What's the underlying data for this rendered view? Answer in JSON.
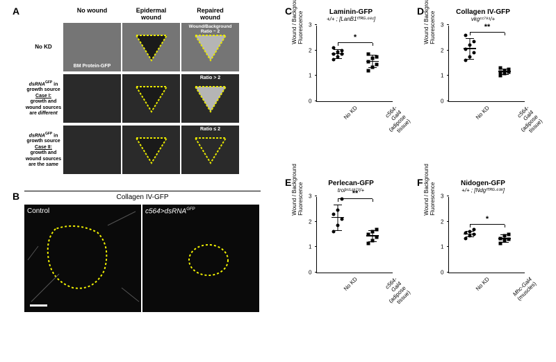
{
  "panels": {
    "A": {
      "label": "A"
    },
    "B": {
      "label": "B",
      "header": "Collagen IV-GFP",
      "left_label": "Control",
      "right_label": "c564>dsRNA",
      "right_sup": "GFP"
    },
    "C": {
      "label": "C",
      "title": "Laminin-GFP",
      "subtitle": "+/+ ; [LanB1ᶠᵀᴿᴳ·⁶⁸¹]",
      "sig": "*"
    },
    "D": {
      "label": "D",
      "title": "Collagen IV-GFP",
      "subtitle": "vkgᶜᶜ⁷⁹¹/+",
      "sig": "**"
    },
    "E": {
      "label": "E",
      "title": "Perlecan-GFP",
      "subtitle": "trolᶻᶜᴸ¹⁹⁷³/+",
      "sig": "**"
    },
    "F": {
      "label": "F",
      "title": "Nidogen-GFP",
      "subtitle": "+/+ ; [Ndgᶠᵀᴿᴳ·⁶³⁸]",
      "sig": "*"
    }
  },
  "gridA": {
    "cols": [
      "No wound",
      "Epidermal\nwound",
      "Repaired\nwound"
    ],
    "rows": [
      {
        "label": "No KD",
        "ratio": "Wound/Background\nRatio ~ 2",
        "bm_text": "BM Protein-GFP"
      },
      {
        "label_html": "dsRNAᴳᶠᴾ in\ngrowth source\nCase I:\ngrowth and\nwound sources\nare different",
        "ratio": "Ratio > 2"
      },
      {
        "label_html": "dsRNAᴳᶠᴾ in\ngrowth source\nCase II:\ngrowth and\nwound sources\nare the same",
        "ratio": "Ratio ≤ 2"
      }
    ],
    "colors": {
      "row0_bg": "#757575",
      "row12_bg": "#2a2a2a",
      "tri_fill_light": "#b5b5b5",
      "tri_fill_dark": "#1a1a1a",
      "tri_border": "#e8e800"
    }
  },
  "charts": {
    "y_label": "Wound / Background\nFluorescence",
    "y_ticks": [
      0,
      1,
      2,
      3
    ],
    "x_labels_adipose": [
      "No KD",
      "c564-Gal4\n(adipose tissue)"
    ],
    "x_labels_muscle": [
      "No KD",
      "Mhc-Gal4\n(muscles)"
    ],
    "C": {
      "g1": {
        "mean": 1.85,
        "sd": 0.18,
        "pts": [
          1.65,
          1.75,
          1.85,
          1.85,
          1.95,
          2.0,
          2.1
        ]
      },
      "g2": {
        "mean": 1.55,
        "sd": 0.25,
        "pts": [
          1.2,
          1.35,
          1.45,
          1.55,
          1.7,
          1.75,
          1.85
        ]
      }
    },
    "D": {
      "g1": {
        "mean": 2.05,
        "sd": 0.4,
        "pts": [
          1.6,
          1.75,
          1.9,
          2.05,
          2.2,
          2.35,
          2.6
        ]
      },
      "g2": {
        "mean": 1.15,
        "sd": 0.1,
        "pts": [
          1.0,
          1.1,
          1.15,
          1.15,
          1.2,
          1.25,
          1.3
        ]
      }
    },
    "E": {
      "g1": {
        "mean": 2.15,
        "sd": 0.5,
        "pts": [
          1.6,
          1.85,
          2.1,
          2.3,
          2.45,
          2.9
        ]
      },
      "g2": {
        "mean": 1.42,
        "sd": 0.22,
        "pts": [
          1.15,
          1.25,
          1.4,
          1.5,
          1.6,
          1.7
        ]
      }
    },
    "F": {
      "g1": {
        "mean": 1.5,
        "sd": 0.12,
        "pts": [
          1.35,
          1.45,
          1.5,
          1.55,
          1.6,
          1.7
        ]
      },
      "g2": {
        "mean": 1.32,
        "sd": 0.15,
        "pts": [
          1.15,
          1.25,
          1.3,
          1.35,
          1.45,
          1.5
        ]
      }
    }
  },
  "style": {
    "yellow": "#f0f000"
  }
}
